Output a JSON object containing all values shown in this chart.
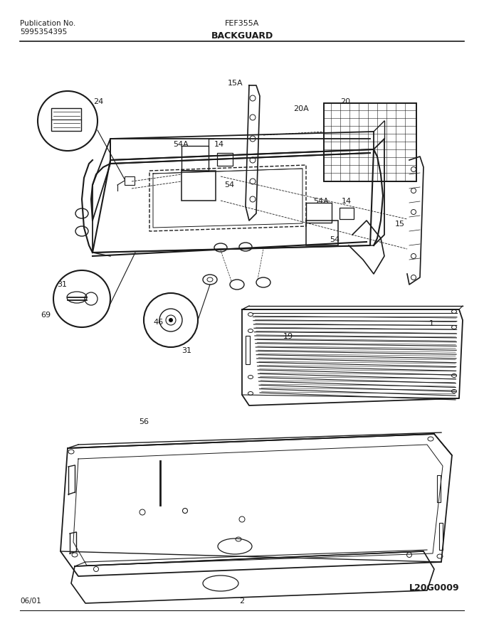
{
  "title_model": "FEF355A",
  "pub_no_label": "Publication No.",
  "pub_no": "5995354395",
  "section_title": "BACKGUARD",
  "date": "06/01",
  "page": "2",
  "doc_id": "L20G0009",
  "bg_color": "#ffffff",
  "line_color": "#1a1a1a",
  "text_color": "#1a1a1a",
  "fig_width": 6.8,
  "fig_height": 8.8,
  "dpi": 100
}
